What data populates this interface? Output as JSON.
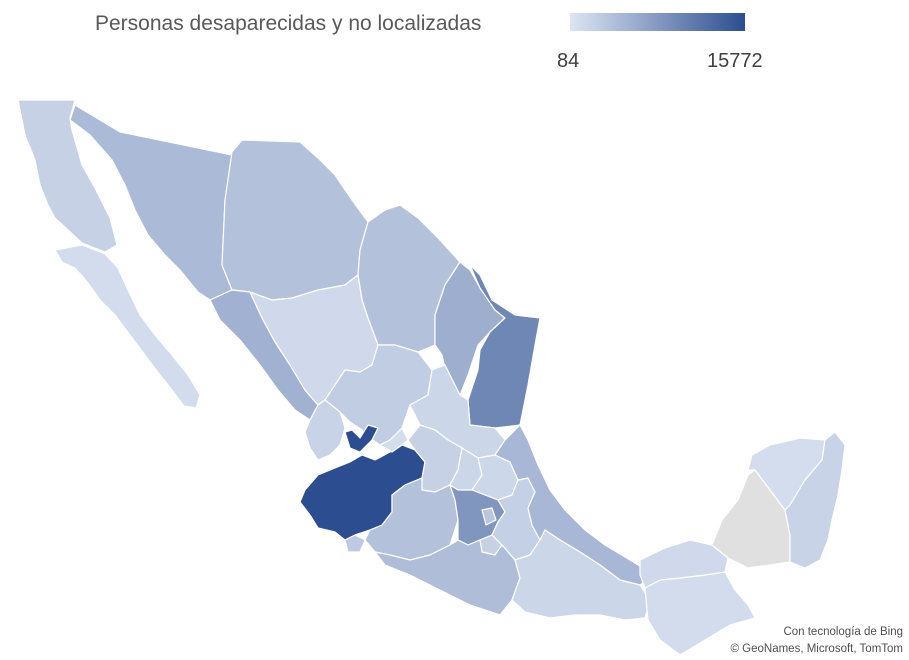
{
  "legend": {
    "title": "Personas desaparecidas y no localizadas",
    "min_label": "84",
    "max_label": "15772",
    "color_low": "#dde5f3",
    "color_high": "#2c4d8f"
  },
  "no_data_color": "#e0e0e0",
  "states": [
    {
      "id": "baja-california",
      "level": 0.13
    },
    {
      "id": "baja-california-sur",
      "level": 0.06
    },
    {
      "id": "sonora",
      "level": 0.28
    },
    {
      "id": "chihuahua",
      "level": 0.24
    },
    {
      "id": "coahuila",
      "level": 0.24
    },
    {
      "id": "nuevo-leon",
      "level": 0.36
    },
    {
      "id": "tamaulipas",
      "level": 0.62
    },
    {
      "id": "sinaloa",
      "level": 0.34
    },
    {
      "id": "durango",
      "level": 0.08
    },
    {
      "id": "zacatecas",
      "level": 0.16
    },
    {
      "id": "san-luis-potosi",
      "level": 0.1
    },
    {
      "id": "nayarit",
      "level": 0.12
    },
    {
      "id": "jalisco",
      "level": 1.0
    },
    {
      "id": "aguascalientes",
      "level": 0.05
    },
    {
      "id": "guanajuato",
      "level": 0.13
    },
    {
      "id": "queretaro",
      "level": 0.1
    },
    {
      "id": "hidalgo",
      "level": 0.09
    },
    {
      "id": "colima",
      "level": 0.18
    },
    {
      "id": "michoacan",
      "level": 0.24
    },
    {
      "id": "estado-de-mexico",
      "level": 0.52
    },
    {
      "id": "ciudad-de-mexico",
      "level": 0.2
    },
    {
      "id": "morelos",
      "level": 0.13
    },
    {
      "id": "puebla",
      "level": 0.14
    },
    {
      "id": "tlaxcala",
      "level": 0.05
    },
    {
      "id": "veracruz",
      "level": 0.3
    },
    {
      "id": "guerrero",
      "level": 0.26
    },
    {
      "id": "oaxaca",
      "level": 0.1
    },
    {
      "id": "chiapas",
      "level": 0.06
    },
    {
      "id": "tabasco",
      "level": 0.08
    },
    {
      "id": "campeche",
      "level": null
    },
    {
      "id": "yucatan",
      "level": 0.05
    },
    {
      "id": "quintana-roo",
      "level": 0.12
    }
  ],
  "attribution": {
    "line1": "Con tecnología de Bing",
    "line2": "© GeoNames, Microsoft, TomTom"
  }
}
